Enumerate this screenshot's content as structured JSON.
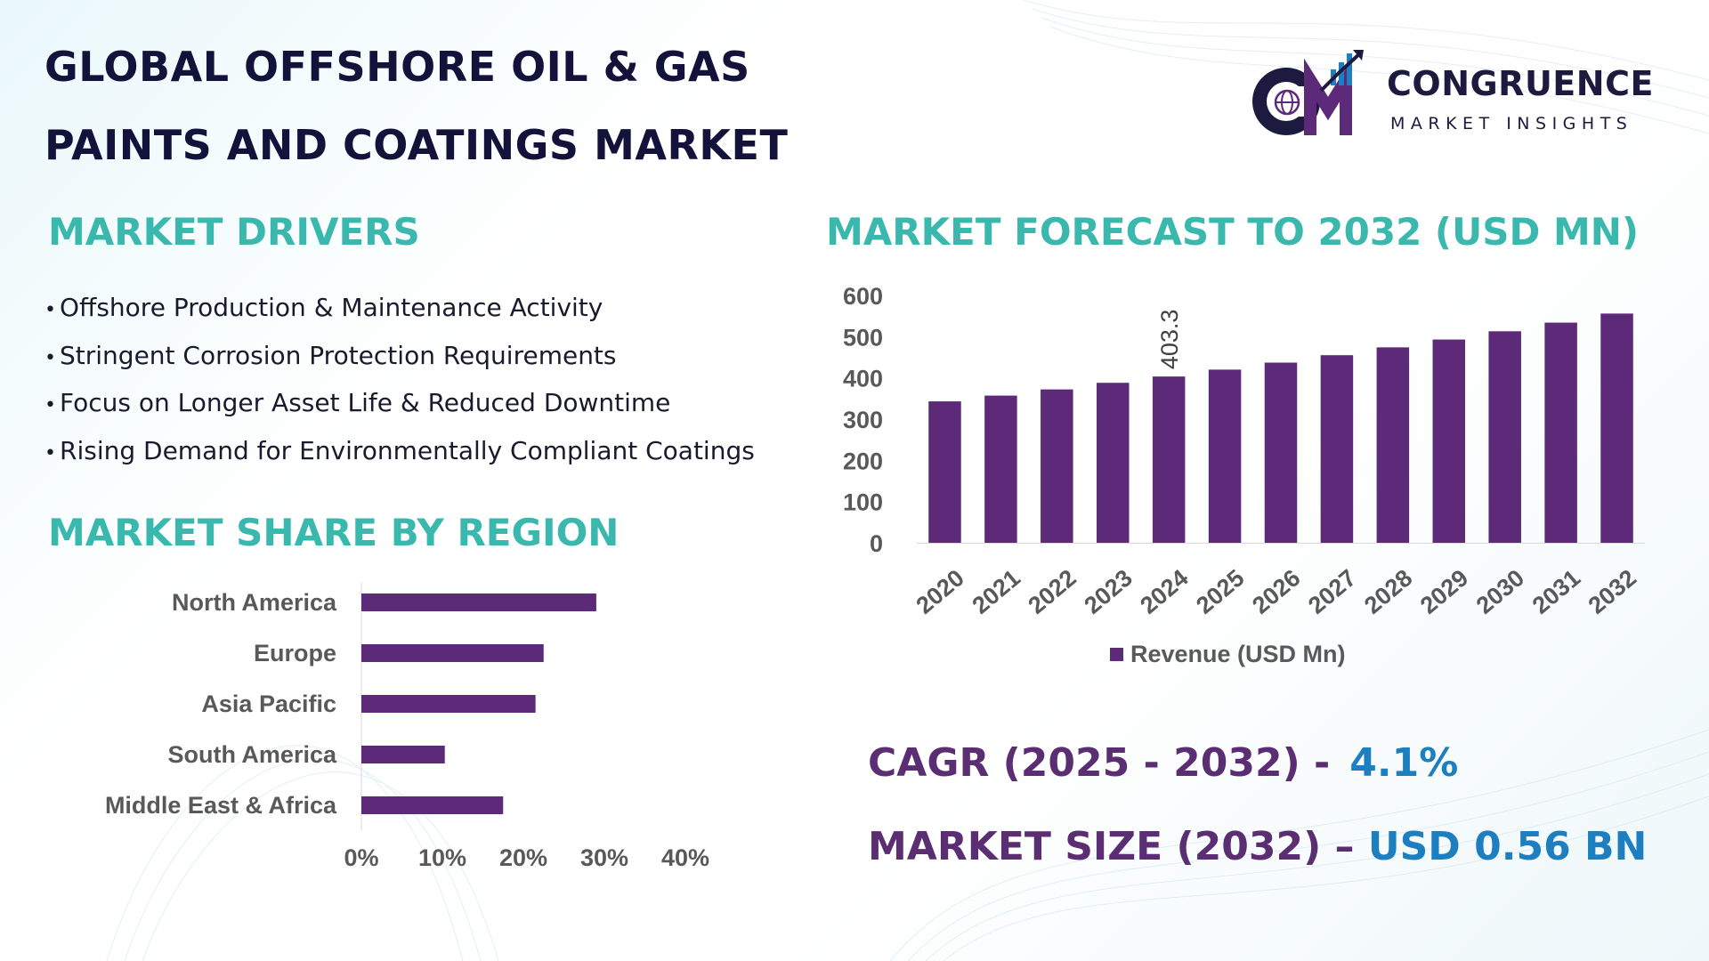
{
  "title": {
    "line1": "GLOBAL OFFSHORE OIL & GAS",
    "line2": "PAINTS AND COATINGS MARKET"
  },
  "logo": {
    "name": "CONGRUENCE",
    "tagline": "MARKET INSIGHTS",
    "monogram": "CM"
  },
  "drivers": {
    "heading": "MARKET DRIVERS",
    "items": [
      "Offshore Production & Maintenance Activity",
      "Stringent Corrosion Protection Requirements",
      "Focus on Longer Asset Life & Reduced Downtime",
      "Rising Demand for Environmentally Compliant Coatings"
    ]
  },
  "region": {
    "heading": "MARKET SHARE BY REGION"
  },
  "forecast": {
    "heading": "MARKET FORECAST TO 2032 (USD MN)"
  },
  "stats": {
    "cagr_label": "CAGR (2025 - 2032) -",
    "cagr_value": "4.1%",
    "size_label": "MARKET SIZE (2032) –",
    "size_value": "USD 0.56 BN"
  },
  "colors": {
    "bar": "#5c2a78",
    "heading_teal": "#3bb8ad",
    "title_navy": "#13123a",
    "stat_purple": "#5b2d72",
    "stat_blue": "#1d7fbf",
    "axis_text": "#595959"
  },
  "chart_data": [
    {
      "type": "bar",
      "orientation": "horizontal",
      "categories": [
        "North America",
        "Europe",
        "Asia Pacific",
        "South America",
        "Middle East & Africa"
      ],
      "values": [
        29,
        22.5,
        21.5,
        10.3,
        17.5
      ],
      "xlim": [
        0,
        40
      ],
      "xticks": [
        "0%",
        "10%",
        "20%",
        "30%",
        "40%"
      ],
      "grid": false
    },
    {
      "type": "bar",
      "categories": [
        "2020",
        "2021",
        "2022",
        "2023",
        "2024",
        "2025",
        "2026",
        "2027",
        "2028",
        "2029",
        "2030",
        "2031",
        "2032"
      ],
      "series": [
        {
          "name": "Revenue (USD Mn)",
          "values": [
            343,
            357,
            372,
            388,
            403.3,
            420,
            437,
            455,
            474,
            493,
            513,
            534,
            556
          ]
        }
      ],
      "data_labels": {
        "2024": "403.3"
      },
      "ylim": [
        0,
        600
      ],
      "yticks": [
        "600",
        "500",
        "400",
        "300",
        "200",
        "100",
        "0"
      ],
      "legend": "bottom",
      "grid": false
    }
  ]
}
